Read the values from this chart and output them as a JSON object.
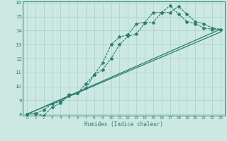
{
  "xlabel": "Humidex (Indice chaleur)",
  "bg_color": "#cce8e2",
  "grid_color": "#b0d4ce",
  "line_color": "#2d7d6e",
  "xlim": [
    -0.5,
    23.5
  ],
  "ylim": [
    7.9,
    16.1
  ],
  "xticks": [
    0,
    1,
    2,
    3,
    4,
    5,
    6,
    7,
    8,
    9,
    10,
    11,
    12,
    13,
    14,
    15,
    16,
    17,
    18,
    19,
    20,
    21,
    22,
    23
  ],
  "yticks": [
    8,
    9,
    10,
    11,
    12,
    13,
    14,
    15,
    16
  ],
  "line1_x": [
    0,
    1,
    2,
    3,
    4,
    5,
    6,
    7,
    8,
    9,
    10,
    11,
    12,
    13,
    14,
    15,
    16,
    17,
    18,
    19,
    20,
    21,
    22,
    23
  ],
  "line1_y": [
    8.0,
    8.05,
    7.9,
    8.5,
    8.8,
    9.4,
    9.5,
    10.2,
    10.85,
    11.7,
    13.0,
    13.55,
    13.7,
    14.5,
    14.6,
    15.3,
    15.3,
    15.8,
    15.2,
    14.65,
    14.5,
    14.2,
    14.1,
    14.1
  ],
  "line2_x": [
    0,
    1,
    2,
    3,
    4,
    5,
    6,
    7,
    8,
    9,
    10,
    11,
    12,
    13,
    14,
    15,
    16,
    17,
    18,
    19,
    20,
    21,
    22,
    23
  ],
  "line2_y": [
    8.0,
    8.05,
    8.3,
    8.75,
    8.9,
    9.3,
    9.5,
    9.85,
    10.85,
    11.2,
    12.0,
    13.0,
    13.6,
    13.75,
    14.55,
    14.6,
    15.3,
    15.3,
    15.75,
    15.2,
    14.65,
    14.5,
    14.2,
    14.1
  ],
  "line3_x": [
    0,
    23
  ],
  "line3_y": [
    8.0,
    14.1
  ],
  "line4_x": [
    0,
    23
  ],
  "line4_y": [
    8.0,
    13.9
  ]
}
